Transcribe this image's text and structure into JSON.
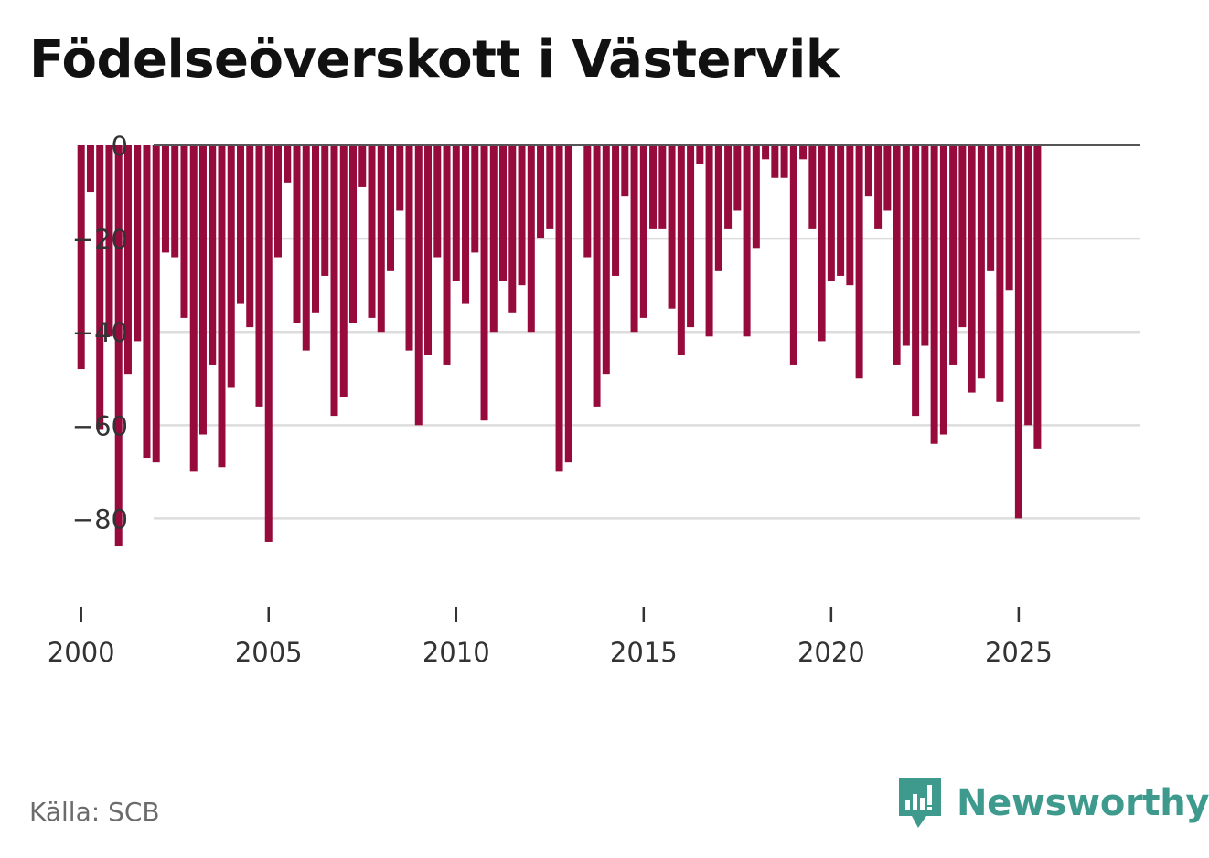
{
  "title": "Födelseöverskott i Västervik",
  "source": "Källa: SCB",
  "brand": "Newsworthy",
  "colors": {
    "bar": "#960a3c",
    "grid": "#dddddd",
    "zero_line": "#555555",
    "brand": "#3f9a8e"
  },
  "chart_data": {
    "type": "bar",
    "title": "Födelseöverskott i Västervik",
    "xlabel": "",
    "ylabel": "",
    "ylim": [
      -95,
      0
    ],
    "xlim": [
      1999.3,
      2027.1
    ],
    "yticks": [
      0,
      -20,
      -40,
      -60,
      -80
    ],
    "ytick_labels": [
      "0",
      "−20",
      "−40",
      "−60",
      "−80"
    ],
    "xticks": [
      2000,
      2005,
      2010,
      2015,
      2020,
      2025
    ],
    "xtick_labels": [
      "2000",
      "2005",
      "2010",
      "2015",
      "2020",
      "2025"
    ],
    "grid": true,
    "series": [
      {
        "name": "Födelseöverskott",
        "start": 2000,
        "step": 0.25,
        "values": [
          -48,
          -10,
          -61,
          -41,
          -86,
          -49,
          -42,
          -67,
          -68,
          -23,
          -24,
          -37,
          -70,
          -62,
          -47,
          -69,
          -52,
          -34,
          -39,
          -56,
          -85,
          -24,
          -8,
          -38,
          -44,
          -36,
          -28,
          -58,
          -54,
          -38,
          -9,
          -37,
          -40,
          -27,
          -14,
          -44,
          -60,
          -45,
          -24,
          -47,
          -29,
          -34,
          -23,
          -59,
          -40,
          -29,
          -36,
          -30,
          -40,
          -20,
          -18,
          -70,
          -68,
          0,
          -24,
          -56,
          -49,
          -28,
          -11,
          -40,
          -37,
          -18,
          -18,
          -35,
          -45,
          -39,
          -4,
          -41,
          -27,
          -18,
          -14,
          -41,
          -22,
          -3,
          -7,
          -7,
          -47,
          -3,
          -18,
          -42,
          -29,
          -28,
          -30,
          -50,
          -11,
          -18,
          -14,
          -47,
          -43,
          -58,
          -43,
          -64,
          -62,
          -47,
          -39,
          -53,
          -50,
          -27,
          -55,
          -31,
          -80,
          -60,
          -65
        ]
      }
    ]
  }
}
